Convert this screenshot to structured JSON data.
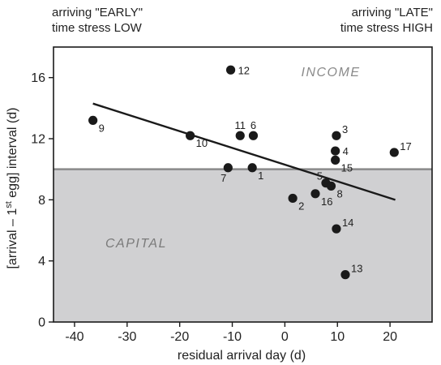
{
  "header": {
    "left_line1": "arriving \"EARLY\"",
    "left_line2": "time stress LOW",
    "right_line1": "arriving \"LATE\"",
    "right_line2": "time stress HIGH"
  },
  "chart_data": {
    "type": "scatter",
    "xlabel": "residual arrival day (d)",
    "ylabel_parts": [
      "[arrival – 1",
      "st",
      " egg] interval (d)"
    ],
    "xlim": [
      -44,
      28
    ],
    "ylim": [
      0,
      18
    ],
    "xticks": [
      -40,
      -30,
      -20,
      -10,
      0,
      10,
      20
    ],
    "yticks": [
      0,
      4,
      8,
      12,
      16
    ],
    "grid": false,
    "threshold_y": 10,
    "region_labels": {
      "above": "INCOME",
      "below": "CAPITAL"
    },
    "colors": {
      "points": "#1a1a1a",
      "shade": "#d0d0d2",
      "threshold": "#8a8a8a",
      "fit": "#1a1a1a"
    },
    "fit_line": {
      "x": [
        -36.5,
        21
      ],
      "y": [
        14.3,
        8.0
      ]
    },
    "points": [
      {
        "label": "1",
        "x": -6.2,
        "y": 10.1
      },
      {
        "label": "2",
        "x": 1.5,
        "y": 8.1
      },
      {
        "label": "3",
        "x": 9.8,
        "y": 12.2
      },
      {
        "label": "4",
        "x": 9.6,
        "y": 11.2
      },
      {
        "label": "5",
        "x": 7.8,
        "y": 9.1
      },
      {
        "label": "6",
        "x": -6.0,
        "y": 12.2
      },
      {
        "label": "7",
        "x": -10.8,
        "y": 10.1
      },
      {
        "label": "8",
        "x": 8.8,
        "y": 8.9
      },
      {
        "label": "9",
        "x": -36.5,
        "y": 13.2
      },
      {
        "label": "10",
        "x": -18.0,
        "y": 12.2
      },
      {
        "label": "11",
        "x": -8.5,
        "y": 12.2
      },
      {
        "label": "12",
        "x": -10.3,
        "y": 16.5
      },
      {
        "label": "13",
        "x": 11.5,
        "y": 3.1
      },
      {
        "label": "14",
        "x": 9.8,
        "y": 6.1
      },
      {
        "label": "15",
        "x": 9.6,
        "y": 10.6
      },
      {
        "label": "16",
        "x": 5.8,
        "y": 8.4
      },
      {
        "label": "17",
        "x": 20.8,
        "y": 11.1
      }
    ]
  }
}
